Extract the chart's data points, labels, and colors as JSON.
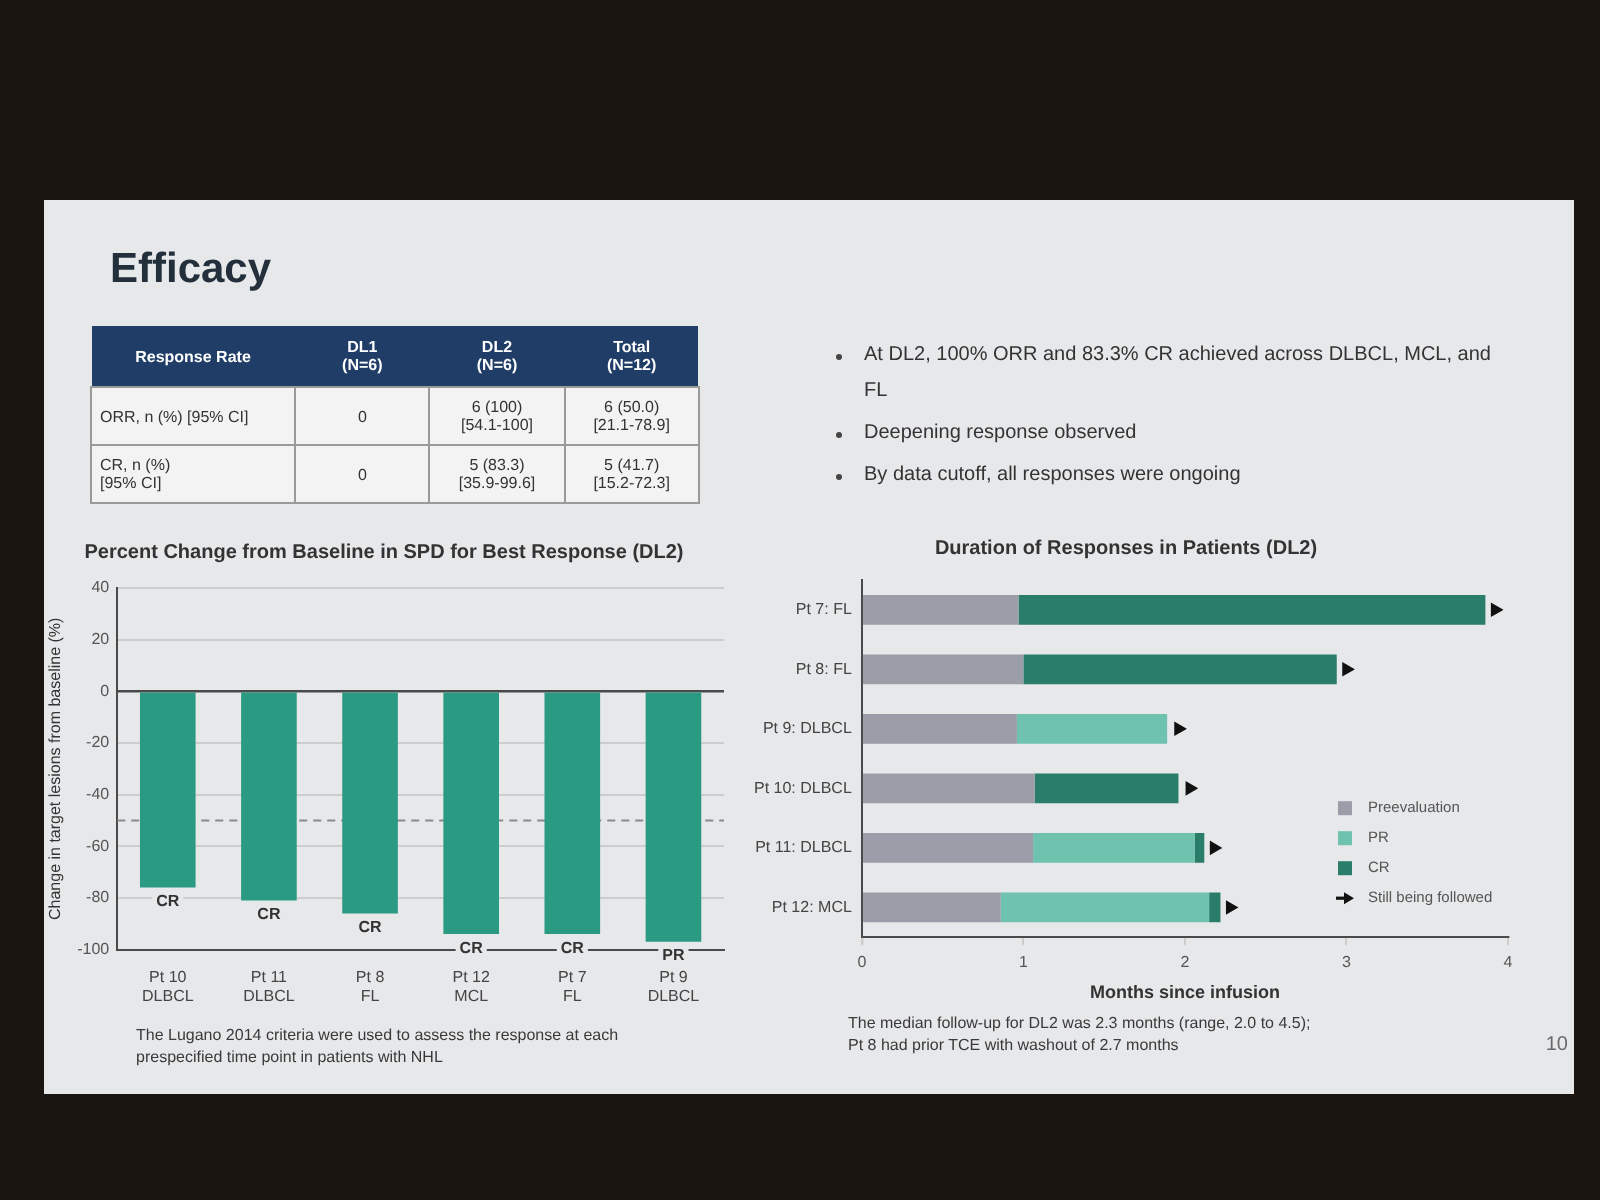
{
  "chart_data": [
    {
      "type": "other",
      "title": "Efficacy",
      "ylabel": "Response Rate",
      "categories": [
        "DL1\n(N=6)",
        "DL2\n(N=6)",
        "Total\n(N=12)"
      ],
      "y_categories": [
        "ORR, n (%) [95% CI]",
        "CR, n (%)\n[95% CI]"
      ],
      "cell_labels": [
        [
          "0",
          "6 (100)\n[54.1-100]",
          "6 (50.0)\n[21.1-78.9]"
        ],
        [
          "0",
          "5 (83.3)\n[35.9-99.6]",
          "5 (41.7)\n[15.2-72.3]"
        ]
      ],
      "annotations": [
        "At DL2, 100% ORR and 83.3% CR achieved across DLBCL, MCL, and FL",
        "Deepening response observed",
        "By data cutoff, all responses were ongoing"
      ]
    },
    {
      "type": "bar",
      "title": "Percent Change from Baseline in SPD for Best Response (DL2)",
      "ylabel": "Change in target lesions from baseline (%)",
      "categories": [
        "Pt 10\nDLBCL",
        "Pt 11\nDLBCL",
        "Pt 8\nFL",
        "Pt 12\nMCL",
        "Pt 7\nFL",
        "Pt 9\nDLBCL"
      ],
      "values": [
        -76,
        -81,
        -86,
        -94,
        -94,
        -97
      ],
      "color": "#2a9a82",
      "ylim": [
        -100,
        40
      ],
      "yticks": [
        40,
        20,
        0,
        -20,
        -40,
        -60,
        -80,
        -100
      ],
      "grid": "y",
      "legend": false,
      "ref_lines": [
        {
          "axis": "y",
          "value": -50,
          "color": "#8a8a8a",
          "line_style": "dashed"
        }
      ],
      "annotations": [
        {
          "text": "CR",
          "x": "Pt 10\nDLBCL",
          "y": -76
        },
        {
          "text": "CR",
          "x": "Pt 11\nDLBCL",
          "y": -81
        },
        {
          "text": "CR",
          "x": "Pt 8\nFL",
          "y": -86
        },
        {
          "text": "CR",
          "x": "Pt 12\nMCL",
          "y": -94
        },
        {
          "text": "CR",
          "x": "Pt 7\nFL",
          "y": -94
        },
        {
          "text": "PR",
          "x": "Pt 9\nDLBCL",
          "y": -97
        },
        "The Lugano 2014 criteria were used to assess the response at each prespecified time point in patients with NHL"
      ]
    },
    {
      "type": "bar",
      "orientation": "horizontal",
      "stacked": true,
      "title": "Duration of Responses in Patients (DL2)",
      "xlabel": "Months since infusion",
      "categories": [
        "Pt 7: FL",
        "Pt 8: FL",
        "Pt 9: DLBCL",
        "Pt 10: DLBCL",
        "Pt 11: DLBCL",
        "Pt 12: MCL"
      ],
      "series": [
        {
          "name": "Preevaluation",
          "color": "#9b9da8",
          "values": [
            0.97,
            1.0,
            0.96,
            1.07,
            1.06,
            0.86
          ]
        },
        {
          "name": "PR",
          "color": "#6ec2ae",
          "values": [
            null,
            null,
            0.93,
            null,
            1.0,
            1.29
          ]
        },
        {
          "name": "CR",
          "color": "#2a7d68",
          "values": [
            2.89,
            1.94,
            null,
            0.89,
            0.06,
            0.07
          ]
        },
        {
          "name": "Still being followed",
          "type": "scatter",
          "marker": "triangle",
          "color": "#111111",
          "values": [
            3.92,
            3.0,
            1.96,
            2.03,
            2.18,
            2.28
          ]
        }
      ],
      "xlim": [
        0,
        4
      ],
      "xticks": [
        0,
        1,
        2,
        3,
        4
      ],
      "grid": false,
      "legend": "bottom right",
      "annotations": [
        "The median follow-up for DL2 was 2.3 months (range, 2.0 to 4.5);\nPt 8 had prior TCE with washout of 2.7 months",
        "10"
      ]
    }
  ]
}
